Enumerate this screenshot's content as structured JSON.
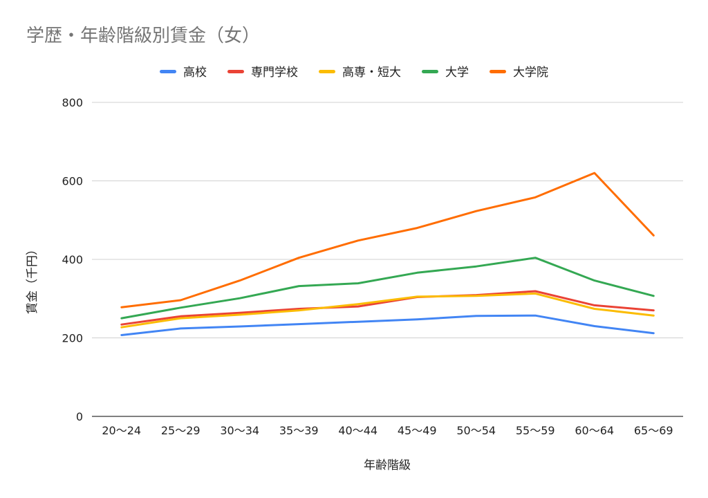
{
  "chart_data": {
    "type": "line",
    "title": "学歴・年齢階級別賃金（女）",
    "xlabel": "年齢階級",
    "ylabel": "賃金（千円）",
    "ylim": [
      0,
      800
    ],
    "yticks": [
      0,
      200,
      400,
      600,
      800
    ],
    "grid": true,
    "legend_position": "top",
    "categories": [
      "20〜24",
      "25〜29",
      "30〜34",
      "35〜39",
      "40〜44",
      "45〜49",
      "50〜54",
      "55〜59",
      "60〜64",
      "65〜69"
    ],
    "series": [
      {
        "name": "高校",
        "color": "#4285f4",
        "values": [
          207,
          224,
          229,
          235,
          241,
          247,
          256,
          257,
          230,
          212
        ]
      },
      {
        "name": "専門学校",
        "color": "#ea4335",
        "values": [
          234,
          255,
          264,
          274,
          280,
          304,
          309,
          319,
          283,
          270
        ]
      },
      {
        "name": "高専・短大",
        "color": "#fbbc04",
        "values": [
          227,
          250,
          259,
          270,
          286,
          305,
          307,
          313,
          274,
          257
        ]
      },
      {
        "name": "大学",
        "color": "#34a853",
        "values": [
          250,
          277,
          301,
          332,
          339,
          366,
          382,
          404,
          346,
          307
        ]
      },
      {
        "name": "大学院",
        "color": "#ff6d01",
        "values": [
          278,
          296,
          346,
          404,
          448,
          480,
          523,
          558,
          620,
          461
        ]
      }
    ]
  }
}
